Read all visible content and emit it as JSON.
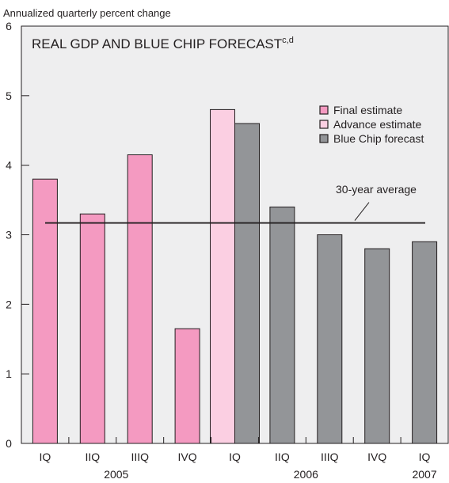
{
  "chart_data": {
    "type": "bar",
    "title": "REAL GDP AND BLUE CHIP FORECAST",
    "title_superscript": "c,d",
    "ylabel": "Annualized quarterly percent change",
    "ylim": [
      0,
      6
    ],
    "yticks": [
      "0",
      "1",
      "2",
      "3",
      "4",
      "5",
      "6"
    ],
    "categories": [
      "IQ",
      "IIQ",
      "IIIQ",
      "IVQ",
      "IQ",
      "IIQ",
      "IIIQ",
      "IVQ",
      "IQ"
    ],
    "year_labels": [
      "2005",
      "2006",
      "2007"
    ],
    "series": [
      {
        "name": "Final estimate",
        "color": "#f49ac1",
        "values": [
          3.8,
          3.3,
          4.15,
          1.65,
          null,
          null,
          null,
          null,
          null
        ]
      },
      {
        "name": "Advance estimate",
        "color": "#fbcfe2",
        "values": [
          null,
          null,
          null,
          null,
          4.8,
          null,
          null,
          null,
          null
        ]
      },
      {
        "name": "Blue Chip forecast",
        "color": "#939598",
        "values": [
          null,
          null,
          null,
          null,
          4.6,
          3.4,
          3.0,
          2.8,
          2.9
        ]
      }
    ],
    "reference_line": {
      "label": "30-year average",
      "value": 3.17
    },
    "legend": {
      "position": "top-right"
    },
    "grid": false
  }
}
